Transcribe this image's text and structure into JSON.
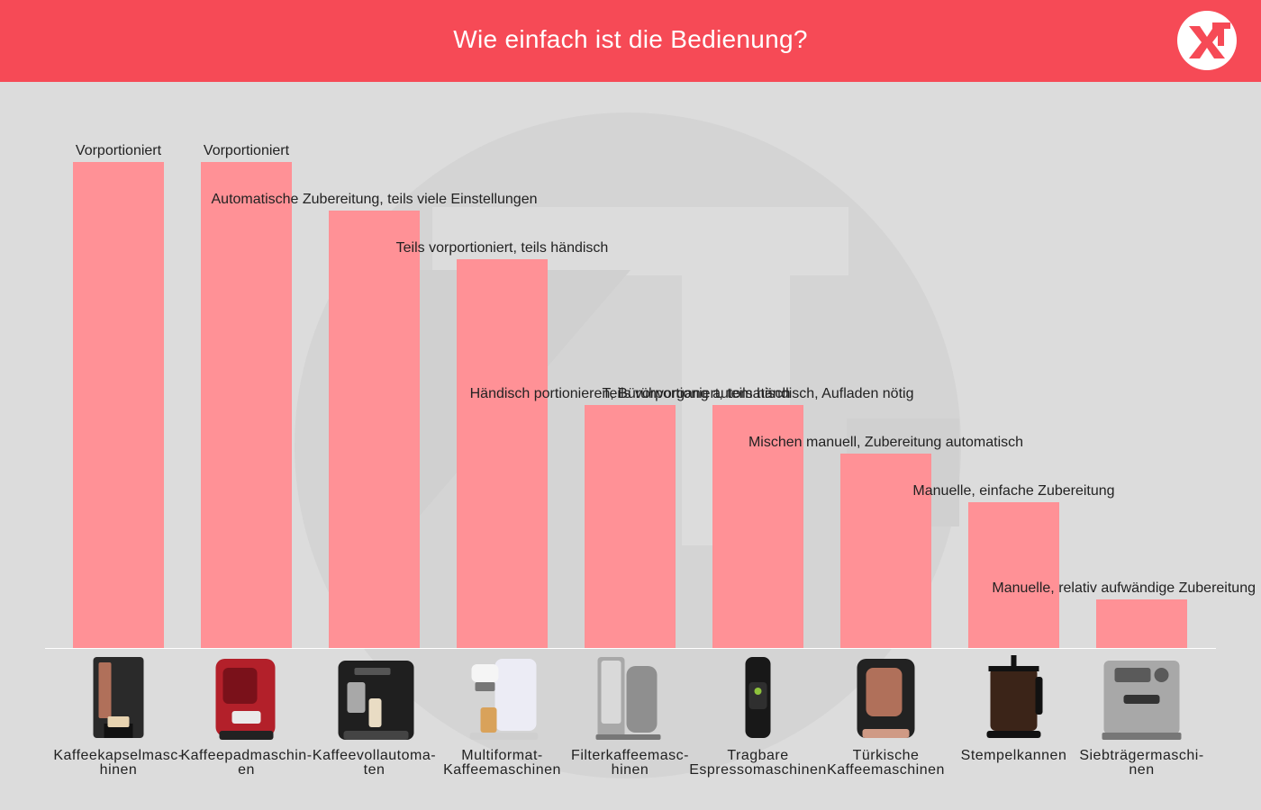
{
  "header": {
    "title": "Wie einfach ist die Bedienung?",
    "logo_icon": "xt-logo-icon"
  },
  "colors": {
    "header_bg": "#f64a56",
    "background": "#dcdcdc",
    "bar": "#ff9196",
    "watermark": "#d3d3d3",
    "baseline": "#ffffff"
  },
  "chart_data": {
    "type": "bar",
    "title": "Wie einfach ist die Bedienung?",
    "xlabel": "",
    "ylabel": "",
    "grid": false,
    "legend": "none",
    "ylim": [
      0,
      10
    ],
    "categories": [
      [
        "Kaffeekapselmasc-",
        "hinen"
      ],
      [
        "Kaffeepadmaschin-",
        "en"
      ],
      [
        "Kaffeevollautoma-",
        "ten"
      ],
      [
        "Multiformat-",
        "Kaffeemaschinen"
      ],
      [
        "Filterkaffeemasc-",
        "hinen"
      ],
      [
        "Tragbare",
        "Espressomaschinen"
      ],
      [
        "Türkische",
        "Kaffeemaschinen"
      ],
      [
        "Stempelkannen"
      ],
      [
        "Siebträgermaschi-",
        "nen"
      ]
    ],
    "values": [
      10,
      10,
      9,
      8,
      5,
      5,
      4,
      3,
      1
    ],
    "data_labels": [
      "Vorportioniert",
      "Vorportioniert",
      "Automatische Zubereitung, teils viele Einstellungen",
      "Teils vorportioniert, teils händisch",
      "Händisch portionieren, Bürühvorgang automatisch",
      "Teils vorportioniert, teils händisch, Aufladen nötig",
      "Mischen manuell, Zubereitung automatisch",
      "Manuelle, einfache Zubereitung",
      "Manuelle, relativ aufwändige Zubereitung"
    ],
    "category_icons": [
      "capsule-machine-icon",
      "pad-machine-icon",
      "fully-automatic-machine-icon",
      "multiformat-machine-icon",
      "filter-coffee-machine-icon",
      "portable-espresso-icon",
      "turkish-coffee-machine-icon",
      "french-press-icon",
      "portafilter-machine-icon"
    ]
  }
}
